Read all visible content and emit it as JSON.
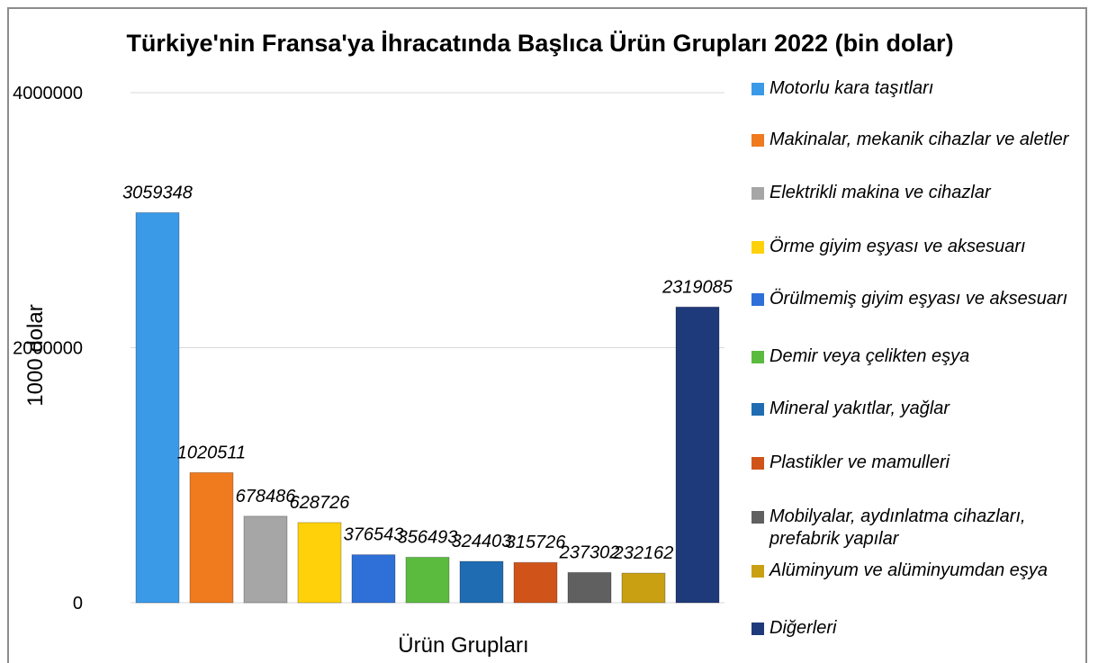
{
  "chart_data": {
    "type": "bar",
    "title": "Türkiye'nin Fransa'ya İhracatında Başlıca Ürün Grupları 2022 (bin dolar)",
    "xlabel": "Ürün Grupları",
    "ylabel": "1000 dolar",
    "series": [
      {
        "name": "Motorlu kara taşıtları",
        "color": "#3b9ae8",
        "values": [
          3059348
        ]
      },
      {
        "name": "Makinalar, mekanik cihazlar ve aletler",
        "color": "#f07a1e",
        "values": [
          1020511
        ]
      },
      {
        "name": "Elektrikli makina ve cihazlar",
        "color": "#a6a6a6",
        "values": [
          678486
        ]
      },
      {
        "name": "Örme giyim eşyası ve aksesuarı",
        "color": "#ffd10a",
        "values": [
          628726
        ]
      },
      {
        "name": "Örülmemiş giyim eşyası ve aksesuarı",
        "color": "#2f6fd8",
        "values": [
          376543
        ]
      },
      {
        "name": "Demir veya çelikten eşya",
        "color": "#5bbb3f",
        "values": [
          356493
        ]
      },
      {
        "name": "Mineral yakıtlar, yağlar",
        "color": "#1f6cb3",
        "values": [
          324403
        ]
      },
      {
        "name": "Plastikler ve mamulleri",
        "color": "#d0541a",
        "values": [
          315726
        ]
      },
      {
        "name": "Mobilyalar, aydınlatma cihazları, prefabrik yapılar",
        "color": "#606060",
        "values": [
          237302
        ]
      },
      {
        "name": "Alüminyum ve alüminyumdan eşya",
        "color": "#c9a012",
        "values": [
          232162
        ]
      },
      {
        "name": "Diğerleri",
        "color": "#1f3a7a",
        "values": [
          2319085
        ]
      }
    ],
    "ylim": [
      0,
      4000000
    ],
    "yticks": [
      0,
      2000000,
      4000000
    ],
    "grid": true,
    "legend": "right"
  }
}
